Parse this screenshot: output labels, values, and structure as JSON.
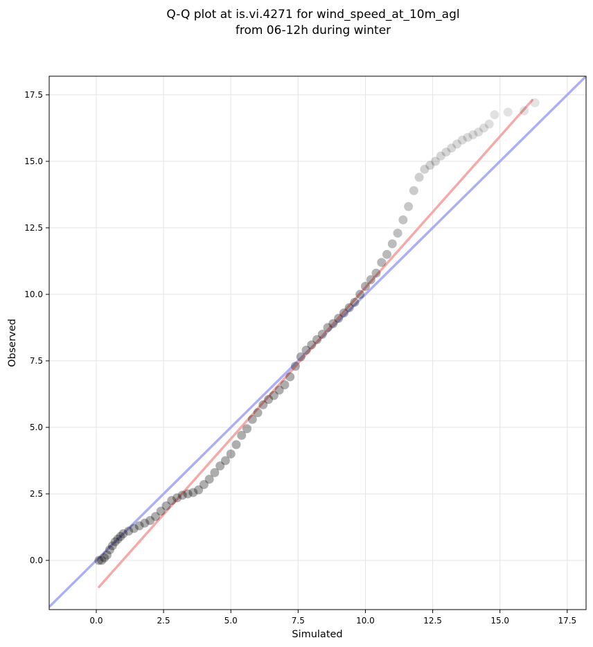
{
  "chart_data": {
    "type": "scatter",
    "title": "Q-Q plot at is.vi.4271 for wind_speed_at_10m_agl",
    "subtitle": "from 06-12h during winter",
    "xlabel": "Simulated",
    "ylabel": "Observed",
    "xlim": [
      -1.75,
      18.2
    ],
    "ylim": [
      -1.85,
      18.2
    ],
    "xticks": [
      0.0,
      2.5,
      5.0,
      7.5,
      10.0,
      12.5,
      15.0,
      17.5
    ],
    "yticks": [
      0.0,
      2.5,
      5.0,
      7.5,
      10.0,
      12.5,
      15.0,
      17.5
    ],
    "xtick_labels": [
      "0.0",
      "2.5",
      "5.0",
      "7.5",
      "10.0",
      "12.5",
      "15.0",
      "17.5"
    ],
    "ytick_labels": [
      "0.0",
      "2.5",
      "5.0",
      "7.5",
      "10.0",
      "12.5",
      "15.0",
      "17.5"
    ],
    "grid": true,
    "reference_lines": [
      {
        "kind": "identity",
        "x": [
          -1.75,
          18.2
        ],
        "y": [
          -1.75,
          18.2
        ],
        "color": "#aaaaf5"
      },
      {
        "kind": "fit",
        "x": [
          0.1,
          16.2
        ],
        "y": [
          -1.0,
          17.3
        ],
        "color": "#f5a6a6"
      }
    ],
    "series": [
      {
        "points_x": [
          0.1,
          0.2,
          0.3,
          0.4,
          0.5,
          0.6,
          0.7,
          0.8,
          0.9,
          1.0,
          1.2,
          1.4,
          1.6,
          1.8,
          2.0,
          2.2,
          2.4,
          2.6,
          2.8,
          3.0,
          3.2,
          3.4,
          3.6,
          3.8,
          4.0,
          4.2,
          4.4,
          4.6,
          4.8,
          5.0,
          5.2,
          5.4,
          5.6,
          5.8,
          6.0,
          6.2,
          6.4,
          6.6,
          6.8,
          7.0,
          7.2,
          7.4,
          7.6,
          7.8,
          8.0,
          8.2,
          8.4,
          8.6,
          8.8,
          9.0,
          9.2,
          9.4,
          9.6,
          9.8,
          10.0,
          10.2,
          10.4,
          10.6,
          10.8,
          11.0,
          11.2,
          11.4,
          11.6,
          11.8,
          12.0,
          12.2,
          12.4,
          12.6,
          12.8,
          13.0,
          13.2,
          13.4,
          13.6,
          13.8,
          14.0,
          14.2,
          14.4,
          14.6,
          14.8,
          15.3,
          15.9,
          16.3
        ],
        "points_y": [
          0.0,
          0.0,
          0.1,
          0.2,
          0.4,
          0.55,
          0.7,
          0.8,
          0.9,
          1.0,
          1.1,
          1.2,
          1.3,
          1.4,
          1.5,
          1.65,
          1.85,
          2.05,
          2.25,
          2.35,
          2.45,
          2.5,
          2.55,
          2.65,
          2.85,
          3.05,
          3.3,
          3.55,
          3.75,
          4.0,
          4.35,
          4.7,
          4.95,
          5.3,
          5.55,
          5.85,
          6.05,
          6.2,
          6.4,
          6.6,
          6.9,
          7.3,
          7.65,
          7.9,
          8.1,
          8.3,
          8.5,
          8.75,
          8.9,
          9.1,
          9.3,
          9.5,
          9.7,
          10.0,
          10.3,
          10.55,
          10.8,
          11.2,
          11.5,
          11.9,
          12.3,
          12.8,
          13.3,
          13.9,
          14.4,
          14.7,
          14.85,
          15.0,
          15.2,
          15.35,
          15.5,
          15.65,
          15.8,
          15.9,
          16.0,
          16.1,
          16.25,
          16.4,
          16.75,
          16.85,
          16.9,
          17.2
        ],
        "color": "#000000"
      }
    ]
  }
}
